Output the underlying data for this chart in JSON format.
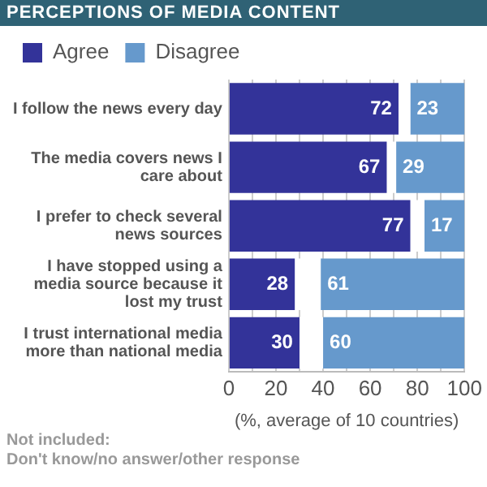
{
  "chart_data": {
    "type": "bar",
    "orientation": "horizontal",
    "title": "PERCEPTIONS OF MEDIA CONTENT",
    "categories": [
      "I follow the news every day",
      "The media covers news I care about",
      "I prefer to check several news sources",
      "I have stopped using a media source because it lost my trust",
      "I trust international media more than national media"
    ],
    "series": [
      {
        "name": "Agree",
        "color": "#333399",
        "values": [
          72,
          67,
          77,
          28,
          30
        ],
        "value_labels": [
          "72",
          "67",
          "77",
          "28",
          "30"
        ]
      },
      {
        "color": "#ffffff",
        "values": [
          5,
          4,
          6,
          11,
          10
        ]
      },
      {
        "name": "Disagree",
        "color": "#6699cc",
        "values": [
          23,
          29,
          17,
          61,
          60
        ],
        "value_labels": [
          "23",
          "29",
          "17",
          "61",
          "60"
        ]
      }
    ],
    "xlabel": "(%, average of 10 countries)",
    "xlim": [
      0,
      100
    ],
    "xticks": [
      0,
      {
        "value": 10,
        "label": null
      },
      20,
      {
        "value": 30,
        "label": null
      },
      40,
      {
        "value": 50,
        "label": null
      },
      60,
      {
        "value": 70,
        "label": null
      },
      80,
      {
        "value": 90,
        "label": null
      },
      100
    ],
    "grid": "x",
    "legend": "top left",
    "stacked": true,
    "annotations": [
      "Not included:\nDon't know/no answer/other response"
    ]
  }
}
